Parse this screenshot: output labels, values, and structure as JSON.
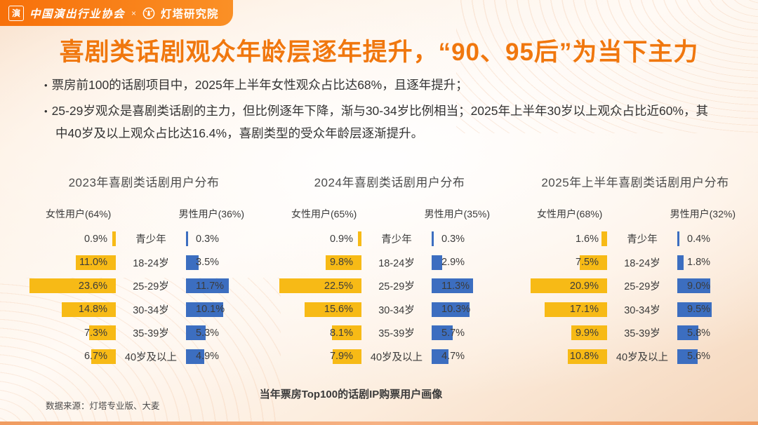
{
  "header": {
    "seal_icon_text": "演",
    "org_left": "中国演出行业协会",
    "separator": "×",
    "org_right": "灯塔研究院"
  },
  "title": "喜剧类话剧观众年龄层逐年提升，“90、95后”为当下主力",
  "bullets": [
    "票房前100的话剧项目中，2025年上半年女性观众占比达68%，且逐年提升；",
    "25-29岁观众是喜剧类话剧的主力，但比例逐年下降，渐与30-34岁比例相当；2025年上半年30岁以上观众占比近60%，其中40岁及以上观众占比达16.4%，喜剧类型的受众年龄层逐渐提升。"
  ],
  "colors": {
    "accent_orange": "#F0770E",
    "header_bar": "#F8780F",
    "female_bar": "#F7BA16",
    "male_bar": "#3C6EC0",
    "body_text": "#333333",
    "background_peach": "#F6D8BE"
  },
  "chart_data": [
    {
      "type": "bar",
      "orientation": "horizontal-mirrored",
      "title": "2023年喜剧类话剧用户分布",
      "female_label": "女性用户(64%)",
      "male_label": "男性用户(36%)",
      "categories": [
        "青少年",
        "18-24岁",
        "25-29岁",
        "30-34岁",
        "35-39岁",
        "40岁及以上"
      ],
      "series": [
        {
          "name": "女性用户",
          "color": "#F7BA16",
          "values": [
            0.9,
            11.0,
            23.6,
            14.8,
            7.3,
            6.7
          ]
        },
        {
          "name": "男性用户",
          "color": "#3C6EC0",
          "values": [
            0.3,
            3.5,
            11.7,
            10.1,
            5.3,
            4.9
          ]
        }
      ],
      "xlim": [
        0,
        25
      ],
      "value_suffix": "%",
      "legend_position": "top",
      "grid": false
    },
    {
      "type": "bar",
      "orientation": "horizontal-mirrored",
      "title": "2024年喜剧类话剧用户分布",
      "female_label": "女性用户(65%)",
      "male_label": "男性用户(35%)",
      "categories": [
        "青少年",
        "18-24岁",
        "25-29岁",
        "30-34岁",
        "35-39岁",
        "40岁及以上"
      ],
      "series": [
        {
          "name": "女性用户",
          "color": "#F7BA16",
          "values": [
            0.9,
            9.8,
            22.5,
            15.6,
            8.1,
            7.9
          ]
        },
        {
          "name": "男性用户",
          "color": "#3C6EC0",
          "values": [
            0.3,
            2.9,
            11.3,
            10.3,
            5.7,
            4.7
          ]
        }
      ],
      "xlim": [
        0,
        25
      ],
      "value_suffix": "%",
      "legend_position": "top",
      "grid": false
    },
    {
      "type": "bar",
      "orientation": "horizontal-mirrored",
      "title": "2025年上半年喜剧类话剧用户分布",
      "female_label": "女性用户(68%)",
      "male_label": "男性用户(32%)",
      "categories": [
        "青少年",
        "18-24岁",
        "25-29岁",
        "30-34岁",
        "35-39岁",
        "40岁及以上"
      ],
      "series": [
        {
          "name": "女性用户",
          "color": "#F7BA16",
          "values": [
            1.6,
            7.5,
            20.9,
            17.1,
            9.9,
            10.8
          ]
        },
        {
          "name": "男性用户",
          "color": "#3C6EC0",
          "values": [
            0.4,
            1.8,
            9.0,
            9.5,
            5.8,
            5.6
          ]
        }
      ],
      "xlim": [
        0,
        25
      ],
      "value_suffix": "%",
      "legend_position": "top",
      "grid": false
    }
  ],
  "footer": {
    "source": "数据来源：灯塔专业版、大麦",
    "caption": "当年票房Top100的话剧IP购票用户画像"
  }
}
